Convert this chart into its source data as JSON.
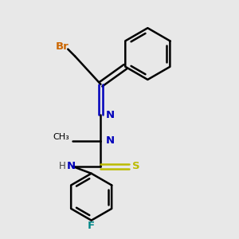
{
  "background_color": "#e8e8e8",
  "bond_color": "#000000",
  "atom_colors": {
    "Br": "#cc6600",
    "N": "#0000bb",
    "S": "#bbbb00",
    "F": "#008888",
    "H": "#444444",
    "C": "#000000"
  },
  "figsize": [
    3.0,
    3.0
  ],
  "dpi": 100
}
